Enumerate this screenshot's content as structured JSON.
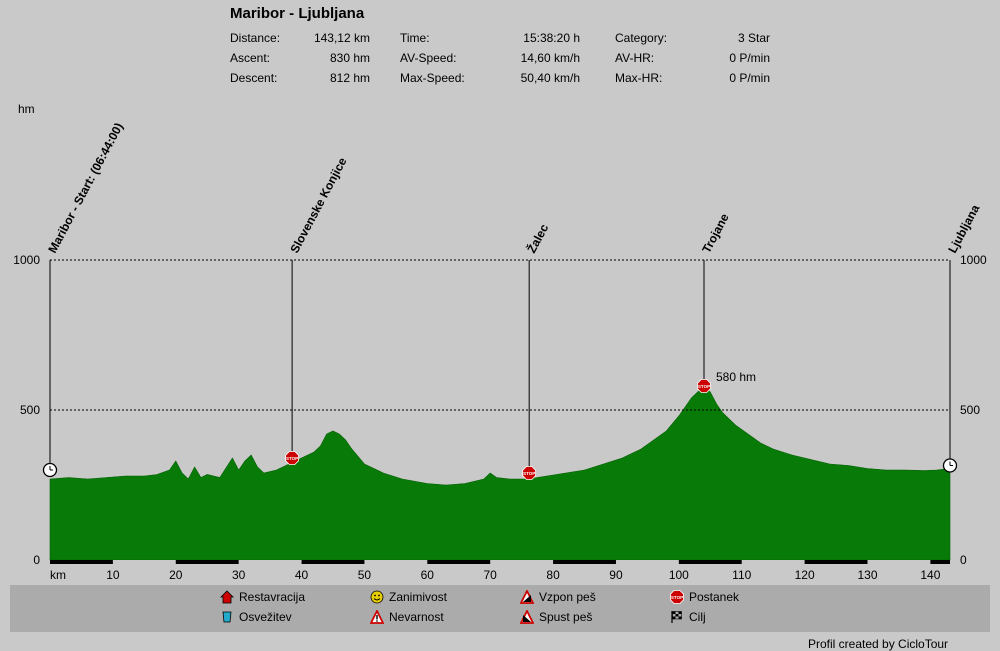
{
  "header": {
    "title": "Maribor - Ljubljana",
    "stats": [
      {
        "label": "Distance:",
        "value": "143,12 km"
      },
      {
        "label": "Ascent:",
        "value": "830 hm"
      },
      {
        "label": "Descent:",
        "value": "812 hm"
      },
      {
        "label": "Time:",
        "value": "15:38:20 h"
      },
      {
        "label": "AV-Speed:",
        "value": "14,60 km/h"
      },
      {
        "label": "Max-Speed:",
        "value": "50,40 km/h"
      },
      {
        "label": "Category:",
        "value": "3 Star"
      },
      {
        "label": "AV-HR:",
        "value": "0 P/min"
      },
      {
        "label": "Max-HR:",
        "value": "0 P/min"
      }
    ]
  },
  "chart_data": {
    "type": "area",
    "ylabel": "hm",
    "xlabel": "km",
    "xlim": [
      0,
      143.12
    ],
    "ylim": [
      0,
      1000
    ],
    "y_ticks": [
      0,
      500,
      1000
    ],
    "x_ticks": [
      10,
      20,
      30,
      40,
      50,
      60,
      70,
      80,
      90,
      100,
      110,
      120,
      130,
      140
    ],
    "grid": "dashed at 500 and 1000",
    "fill_color": "#087a08",
    "x": [
      0,
      3,
      6,
      9,
      12,
      15,
      17,
      19,
      20,
      21,
      22,
      23,
      24,
      25,
      27,
      29,
      30,
      31,
      32,
      33,
      34,
      36,
      38,
      40,
      42,
      43,
      44,
      45,
      46,
      47,
      48,
      50,
      53,
      56,
      60,
      63,
      66,
      69,
      70,
      71,
      73,
      76,
      79,
      82,
      85,
      88,
      91,
      94,
      96,
      98,
      100,
      101,
      102,
      103,
      104,
      105,
      106,
      107,
      109,
      111,
      113,
      115,
      118,
      121,
      124,
      127,
      130,
      133,
      136,
      139,
      141,
      143.12
    ],
    "y": [
      270,
      275,
      270,
      275,
      280,
      280,
      285,
      300,
      330,
      290,
      270,
      310,
      275,
      285,
      275,
      340,
      300,
      330,
      350,
      310,
      290,
      300,
      320,
      340,
      360,
      380,
      420,
      430,
      420,
      400,
      370,
      320,
      290,
      270,
      255,
      250,
      255,
      270,
      290,
      275,
      270,
      270,
      280,
      290,
      300,
      320,
      340,
      370,
      400,
      430,
      480,
      510,
      540,
      560,
      580,
      560,
      520,
      490,
      450,
      420,
      390,
      370,
      350,
      335,
      320,
      315,
      305,
      300,
      300,
      298,
      300,
      305
    ],
    "waypoints": [
      {
        "km": 0,
        "label": "Maribor - Start: (06:44:00)",
        "elev": 300
      },
      {
        "km": 38.5,
        "label": "Slovenske Konjice",
        "elev": 340,
        "stop": "STOP"
      },
      {
        "km": 76.2,
        "label": "Žalec",
        "elev": 290,
        "stop": "STOP"
      },
      {
        "km": 104,
        "label": "Trojane",
        "elev": 580,
        "stop": "STOP",
        "annotation": "580 hm"
      },
      {
        "km": 143.12,
        "label": "Ljubljana",
        "elev": 315
      }
    ]
  },
  "legend": {
    "items": [
      {
        "label": "Restavracija",
        "icon": "restaurant-icon",
        "color": "#cc0000"
      },
      {
        "label": "Osvežitev",
        "icon": "refreshment-icon",
        "color": "#22aacc"
      },
      {
        "label": "Zanimivost",
        "icon": "smiley-icon",
        "color": "#e8d000"
      },
      {
        "label": "Nevarnost",
        "icon": "warning-icon",
        "color": "#cc0000"
      },
      {
        "label": "Vzpon peš",
        "icon": "climb-walk-icon",
        "color": "#cc0000"
      },
      {
        "label": "Spust peš",
        "icon": "descent-walk-icon",
        "color": "#cc0000"
      },
      {
        "label": "Postanek",
        "icon": "stop-icon",
        "color": "#cc0000"
      },
      {
        "label": "Cilj",
        "icon": "finish-flag-icon",
        "color": "#000000"
      }
    ]
  },
  "footer": {
    "credit": "Profil created by CicloTour"
  }
}
